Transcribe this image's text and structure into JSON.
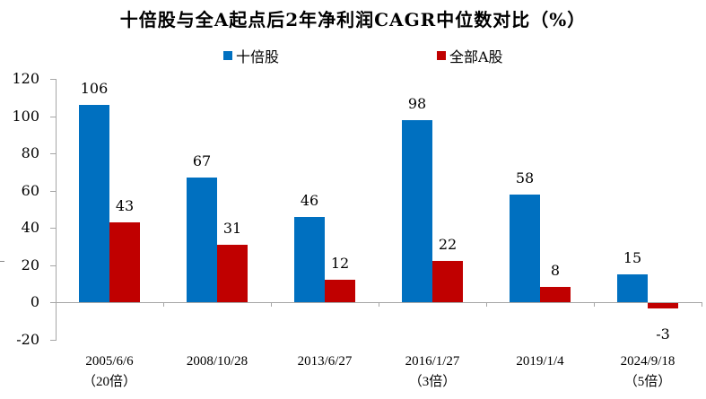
{
  "chart_data": {
    "type": "bar",
    "title": "十倍股与全A起点后2年净利润CAGR中位数对比（%）",
    "xlabel": "",
    "ylabel": "",
    "ylim": [
      -20,
      120
    ],
    "yticks": [
      120,
      100,
      80,
      60,
      40,
      20,
      0,
      -20
    ],
    "grid": false,
    "legend_position": "top",
    "categories": [
      "2005/6/6（20倍）",
      "2008/10/28",
      "2013/6/27",
      "2016/1/27（3倍）",
      "2019/1/4",
      "2024/9/18（5倍）"
    ],
    "category_lines": [
      [
        "2005/6/6",
        "（20倍）"
      ],
      [
        "2008/10/28",
        ""
      ],
      [
        "2013/6/27",
        ""
      ],
      [
        "2016/1/27",
        "（3倍）"
      ],
      [
        "2019/1/4",
        ""
      ],
      [
        "2024/9/18",
        "（5倍）"
      ]
    ],
    "series": [
      {
        "name": "十倍股",
        "color": "#0070c0",
        "values": [
          106,
          67,
          46,
          98,
          58,
          15
        ]
      },
      {
        "name": "全部A股",
        "color": "#c00000",
        "values": [
          43,
          31,
          12,
          22,
          8,
          -3
        ]
      }
    ]
  },
  "labels": {
    "title": "十倍股与全A起点后2年净利润CAGR中位数对比（%）",
    "legend": [
      "十倍股",
      "全部A股"
    ],
    "yticks": [
      "120",
      "100",
      "80",
      "60",
      "40",
      "20",
      "0",
      "-20"
    ]
  }
}
